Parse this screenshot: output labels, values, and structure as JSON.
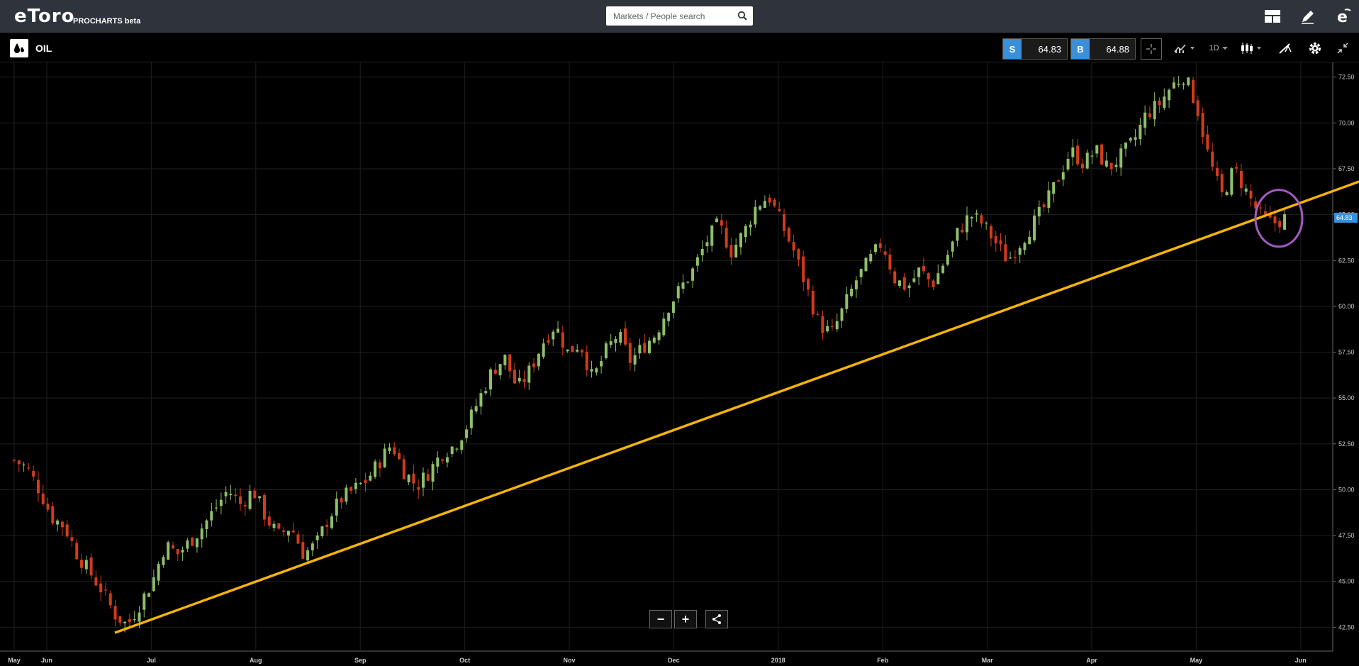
{
  "app": {
    "logo": "eToro",
    "logo_sub": "PROCHARTS beta",
    "search_placeholder": "Markets / People search"
  },
  "instrument": {
    "name": "OIL",
    "sell_label": "S",
    "sell_price": "64.83",
    "buy_label": "B",
    "buy_price": "64.88",
    "timeframe": "1D",
    "accent": "#3a8fd6"
  },
  "icons": {
    "top": [
      "layout-icon",
      "pencil-icon",
      "etoro-e-icon"
    ],
    "toolbar": [
      "crosshair-icon",
      "indicators-icon",
      "candle-type-icon",
      "drawing-icon",
      "gear-icon",
      "collapse-icon"
    ]
  },
  "chart_data": {
    "type": "candlestick",
    "x_labels": [
      "May",
      "Jun",
      "Jul",
      "Aug",
      "Sep",
      "Oct",
      "Nov",
      "Dec",
      "2018",
      "Feb",
      "Mar",
      "Apr",
      "May",
      "Jun"
    ],
    "y_ticks": [
      "72.50",
      "70.00",
      "67.50",
      "65.00",
      "62.50",
      "60.00",
      "57.50",
      "55.00",
      "52.50",
      "50.00",
      "47.50",
      "45.00",
      "42.50"
    ],
    "ylim": [
      41.2,
      73.3
    ],
    "current_price": "64.83",
    "up_color": "#8fbf6a",
    "down_color": "#d13b1b",
    "close_path": [
      51.6,
      51.2,
      50.0,
      48.5,
      48.0,
      46.5,
      45.5,
      44.5,
      43.2,
      42.6,
      43.8,
      45.0,
      47.0,
      46.5,
      47.2,
      48.0,
      49.0,
      50.0,
      49.2,
      50.0,
      48.5,
      47.5,
      48.0,
      46.5,
      47.0,
      48.5,
      49.5,
      50.0,
      50.5,
      51.5,
      52.5,
      51.0,
      50.2,
      51.0,
      52.0,
      52.4,
      53.5,
      55.0,
      56.5,
      57.2,
      55.5,
      56.5,
      58.0,
      59.0,
      57.5,
      58.0,
      56.0,
      57.5,
      58.5,
      57.0,
      57.8,
      58.5,
      60.0,
      61.0,
      62.0,
      63.5,
      64.5,
      63.0,
      64.0,
      65.5,
      66.0,
      64.5,
      63.0,
      61.0,
      59.0,
      58.5,
      60.0,
      61.5,
      62.5,
      63.5,
      61.5,
      61.0,
      62.0,
      61.2,
      62.5,
      64.0,
      65.0,
      64.5,
      63.5,
      62.5,
      63.5,
      64.5,
      65.5,
      67.0,
      68.5,
      67.8,
      68.5,
      67.5,
      68.2,
      69.0,
      70.5,
      71.0,
      72.0,
      72.6,
      71.0,
      68.0,
      66.0,
      67.5,
      66.2,
      65.0,
      64.5,
      64.8
    ],
    "candle_count": 265,
    "trendline": {
      "color": "#f5b400",
      "from": {
        "date": "Jun 21",
        "price": 42.2
      },
      "to": {
        "date": "Jun 14",
        "price": 66.8
      }
    },
    "highlight_circle": {
      "color": "#a45bc4",
      "around": "last candles",
      "price": 64.8
    }
  }
}
